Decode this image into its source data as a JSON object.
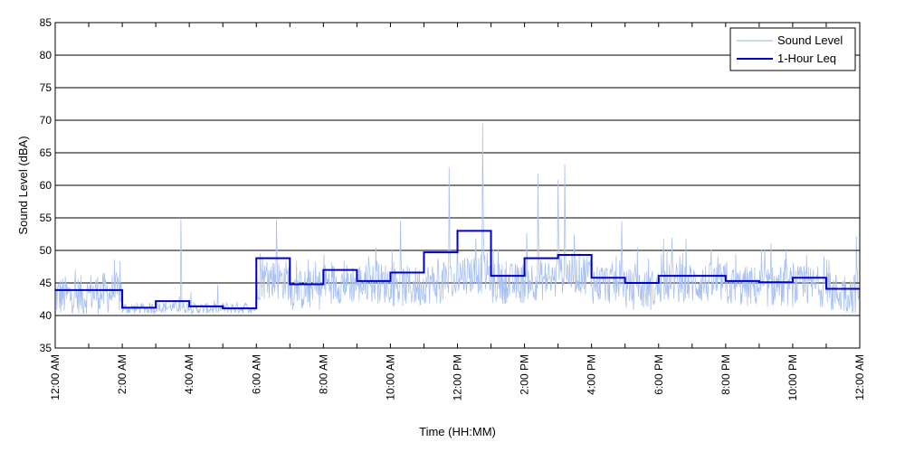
{
  "chart_data": {
    "type": "line",
    "title": "",
    "xlabel": "Time (HH:MM)",
    "ylabel": "Sound Level (dBA)",
    "ylim": [
      35,
      85
    ],
    "yticks": [
      35,
      40,
      45,
      50,
      55,
      60,
      65,
      70,
      75,
      80,
      85
    ],
    "xlim_hours": [
      0,
      24
    ],
    "xtick_labels": [
      "12:00 AM",
      "2:00 AM",
      "4:00 AM",
      "6:00 AM",
      "8:00 AM",
      "10:00 AM",
      "12:00 PM",
      "2:00 PM",
      "4:00 PM",
      "6:00 PM",
      "8:00 PM",
      "10:00 PM",
      "12:00 AM"
    ],
    "grid": "horizontal",
    "legend_position": "top-right",
    "colors": {
      "sound_level": "#a9c1f2",
      "leq": "#0000cc",
      "grid": "#000000"
    },
    "series": [
      {
        "name": "Sound Level",
        "kind": "noisy-trace",
        "hourly_base_dBA": [
          42.0,
          42.5,
          40.8,
          41.0,
          40.8,
          40.9,
          44.5,
          43.0,
          44.0,
          44.0,
          43.5,
          44.0,
          45.5,
          44.0,
          44.5,
          45.5,
          44.0,
          43.0,
          44.0,
          44.0,
          43.5,
          43.5,
          43.5,
          42.5
        ],
        "peaks": [
          {
            "x": 3.75,
            "y": 54.8
          },
          {
            "x": 6.6,
            "y": 54.8
          },
          {
            "x": 10.3,
            "y": 54.5
          },
          {
            "x": 11.75,
            "y": 62.8
          },
          {
            "x": 12.75,
            "y": 69.5
          },
          {
            "x": 14.4,
            "y": 61.8
          },
          {
            "x": 15.0,
            "y": 60.8
          },
          {
            "x": 15.2,
            "y": 63.2
          },
          {
            "x": 16.9,
            "y": 54.5
          },
          {
            "x": 18.4,
            "y": 52.0
          },
          {
            "x": 23.9,
            "y": 52.2
          }
        ]
      },
      {
        "name": "1-Hour Leq",
        "kind": "step",
        "hours": [
          0,
          1,
          2,
          3,
          4,
          5,
          6,
          7,
          8,
          9,
          10,
          11,
          12,
          13,
          14,
          15,
          16,
          17,
          18,
          19,
          20,
          21,
          22,
          23
        ],
        "values": [
          43.9,
          43.9,
          41.2,
          42.2,
          41.4,
          41.1,
          48.8,
          44.8,
          47.0,
          45.3,
          46.6,
          49.7,
          53.0,
          46.1,
          48.8,
          49.3,
          45.8,
          45.0,
          46.1,
          46.1,
          45.3,
          45.1,
          45.8,
          44.1
        ]
      }
    ]
  }
}
